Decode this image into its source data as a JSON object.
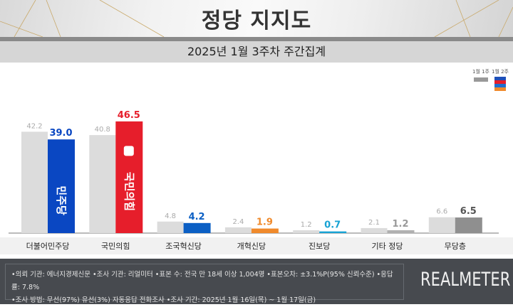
{
  "header": {
    "title": "정당 지지도",
    "subtitle": "2025년 1월 3주차 주간집계"
  },
  "chart_data": {
    "type": "bar",
    "categories": [
      "더불어민주당",
      "국민의힘",
      "조국혁신당",
      "개혁신당",
      "진보당",
      "기타 정당",
      "무당층"
    ],
    "series": [
      {
        "name": "1월 1주",
        "values": [
          42.2,
          40.8,
          4.8,
          2.4,
          1.2,
          2.1,
          6.6
        ],
        "color": "#dcdcdc"
      },
      {
        "name": "1월 2주",
        "values": [
          39.0,
          46.5,
          4.2,
          1.9,
          0.7,
          1.2,
          6.5
        ],
        "colors": [
          "#0a47c2",
          "#e61e2b",
          "#0b5fc4",
          "#f08a2c",
          "#19a3d4",
          "#b0b0b0",
          "#8f8f8f"
        ]
      }
    ],
    "label_colors": [
      "#0a47c2",
      "#e61e2b",
      "#0b5fc4",
      "#f08a2c",
      "#19a3d4",
      "#999999",
      "#555555"
    ],
    "ylim": [
      0,
      50
    ],
    "grid": false,
    "legend": "top-right",
    "legend_stripe_colors": [
      "#1f4fb8",
      "#e61e2b",
      "#1f6fd0",
      "#f08a2c"
    ],
    "bar_logos": {
      "0": "민주당",
      "1": "국민의힘"
    }
  },
  "footer": {
    "line1": "•의뢰 기관: 에너지경제신문  •조사 기관: 리얼미터 •표본 수: 전국 만 18세 이상 1,004명 •표본오차: ±3.1%P(95% 신뢰수준) •응답률: 7.8%",
    "line2": "•조사 방법: 무선(97%) 유선(3%) 자동응답 전화조사 •조사 기간: 2025년 1월 16일(목) ~ 1월 17일(금)",
    "brand": "REALMETER"
  }
}
